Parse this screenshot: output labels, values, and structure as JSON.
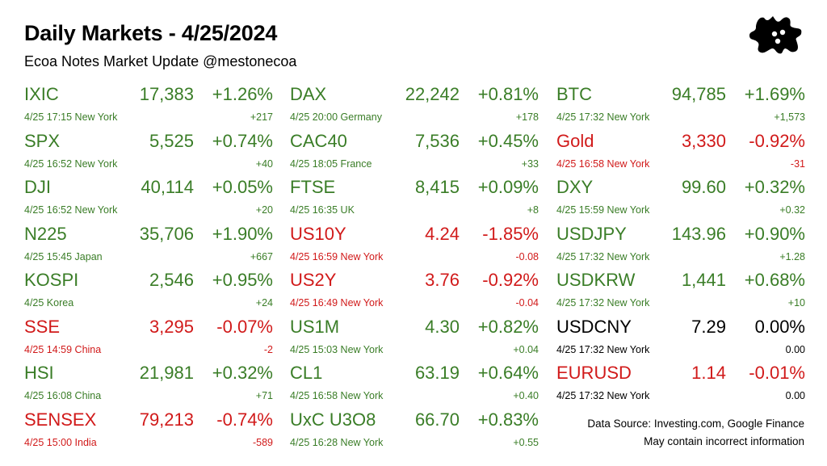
{
  "header": {
    "title": "Daily Markets - 4/25/2024",
    "subtitle": "Ecoa Notes Market Update @mestonecoa"
  },
  "logo": {
    "icon": "splat-logo-icon",
    "color": "#000000"
  },
  "colors": {
    "up": "#3a7d27",
    "down": "#d11a1a",
    "flat": "#000000"
  },
  "columns": [
    [
      {
        "symbol": "IXIC",
        "price": "17,383",
        "pct": "+1.26%",
        "ts": "4/25 17:15 New York",
        "chg": "+217",
        "dir": "up"
      },
      {
        "symbol": "SPX",
        "price": "5,525",
        "pct": "+0.74%",
        "ts": "4/25 16:52 New York",
        "chg": "+40",
        "dir": "up"
      },
      {
        "symbol": "DJI",
        "price": "40,114",
        "pct": "+0.05%",
        "ts": "4/25 16:52 New York",
        "chg": "+20",
        "dir": "up"
      },
      {
        "symbol": "N225",
        "price": "35,706",
        "pct": "+1.90%",
        "ts": "4/25 15:45 Japan",
        "chg": "+667",
        "dir": "up"
      },
      {
        "symbol": "KOSPI",
        "price": "2,546",
        "pct": "+0.95%",
        "ts": "4/25  Korea",
        "chg": "+24",
        "dir": "up"
      },
      {
        "symbol": "SSE",
        "price": "3,295",
        "pct": "-0.07%",
        "ts": "4/25 14:59 China",
        "chg": "-2",
        "dir": "down"
      },
      {
        "symbol": "HSI",
        "price": "21,981",
        "pct": "+0.32%",
        "ts": "4/25 16:08 China",
        "chg": "+71",
        "dir": "up"
      },
      {
        "symbol": "SENSEX",
        "price": "79,213",
        "pct": "-0.74%",
        "ts": "4/25 15:00 India",
        "chg": "-589",
        "dir": "down"
      }
    ],
    [
      {
        "symbol": "DAX",
        "price": "22,242",
        "pct": "+0.81%",
        "ts": "4/25 20:00 Germany",
        "chg": "+178",
        "dir": "up"
      },
      {
        "symbol": "CAC40",
        "price": "7,536",
        "pct": "+0.45%",
        "ts": "4/25 18:05 France",
        "chg": "+33",
        "dir": "up"
      },
      {
        "symbol": "FTSE",
        "price": "8,415",
        "pct": "+0.09%",
        "ts": "4/25 16:35 UK",
        "chg": "+8",
        "dir": "up"
      },
      {
        "symbol": "US10Y",
        "price": "4.24",
        "pct": "-1.85%",
        "ts": "4/25 16:59 New York",
        "chg": "-0.08",
        "dir": "down"
      },
      {
        "symbol": "US2Y",
        "price": "3.76",
        "pct": "-0.92%",
        "ts": "4/25 16:49 New York",
        "chg": "-0.04",
        "dir": "down"
      },
      {
        "symbol": "US1M",
        "price": "4.30",
        "pct": "+0.82%",
        "ts": "4/25 15:03 New York",
        "chg": "+0.04",
        "dir": "up"
      },
      {
        "symbol": "CL1",
        "price": "63.19",
        "pct": "+0.64%",
        "ts": "4/25 16:58 New York",
        "chg": "+0.40",
        "dir": "up"
      },
      {
        "symbol": "UxC U3O8",
        "price": "66.70",
        "pct": "+0.83%",
        "ts": "4/25 16:28 New York",
        "chg": "+0.55",
        "dir": "up"
      }
    ],
    [
      {
        "symbol": "BTC",
        "price": "94,785",
        "pct": "+1.69%",
        "ts": "4/25 17:32 New York",
        "chg": "+1,573",
        "dir": "up"
      },
      {
        "symbol": "Gold",
        "price": "3,330",
        "pct": "-0.92%",
        "ts": "4/25 16:58 New York",
        "chg": "-31",
        "dir": "down"
      },
      {
        "symbol": "DXY",
        "price": "99.60",
        "pct": "+0.32%",
        "ts": "4/25 15:59 New York",
        "chg": "+0.32",
        "dir": "up"
      },
      {
        "symbol": "USDJPY",
        "price": "143.96",
        "pct": "+0.90%",
        "ts": "4/25 17:32 New York",
        "chg": "+1.28",
        "dir": "up"
      },
      {
        "symbol": "USDKRW",
        "price": "1,441",
        "pct": "+0.68%",
        "ts": "4/25 17:32 New York",
        "chg": "+10",
        "dir": "up"
      },
      {
        "symbol": "USDCNY",
        "price": "7.29",
        "pct": "0.00%",
        "ts": "4/25 17:32 New York",
        "chg": "0.00",
        "dir": "flat"
      },
      {
        "symbol": "EURUSD",
        "price": "1.14",
        "pct": "-0.01%",
        "ts": "4/25 17:32 New York",
        "chg": "0.00",
        "dir": "mixed"
      }
    ]
  ],
  "footer": {
    "source": "Data Source: Investing.com, Google Finance",
    "disclaimer": "May contain incorrect information"
  }
}
